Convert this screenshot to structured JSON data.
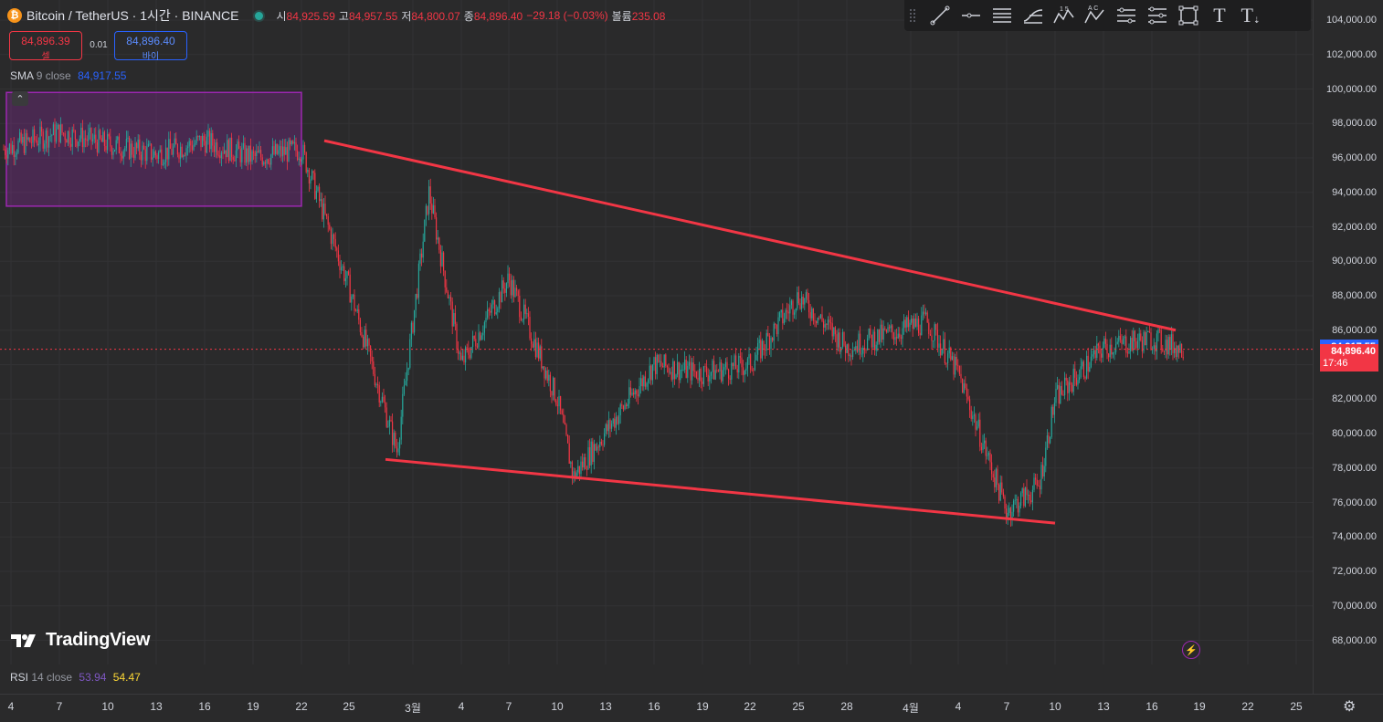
{
  "header": {
    "symbol_icon": "bitcoin-icon",
    "title": "Bitcoin / TetherUS · 1시간 · BINANCE",
    "ohlc": [
      {
        "key": "시",
        "value": "84,925.59"
      },
      {
        "key": "고",
        "value": "84,957.55"
      },
      {
        "key": "저",
        "value": "84,800.07"
      },
      {
        "key": "종",
        "value": "84,896.40"
      },
      {
        "key": "",
        "value": "−29.18 (−0.03%)"
      },
      {
        "key": "볼륨",
        "value": "235.08"
      }
    ]
  },
  "trade": {
    "sell_price": "84,896.39",
    "sell_label": "셀",
    "spread": "0.01",
    "buy_price": "84,896.40",
    "buy_label": "바이"
  },
  "indicators": {
    "sma_name": "SMA",
    "sma_params": "9 close",
    "sma_value": "84,917.55",
    "rsi_name": "RSI",
    "rsi_params": "14 close",
    "rsi_value1": "53.94",
    "rsi_value2": "54.47"
  },
  "toolbar": {
    "items": [
      "trend-line-icon",
      "horizontal-ray-icon",
      "parallel-channel-icon",
      "fib-retracement-icon",
      "xabcd-pattern-icon",
      "abcd-pattern-icon",
      "long-position-icon",
      "date-range-icon",
      "rectangle-icon",
      "text-icon",
      "anchored-text-icon"
    ],
    "labels": [
      "",
      "",
      "",
      "",
      "1 5",
      "A C",
      "",
      "",
      "",
      "T",
      "T"
    ]
  },
  "price_axis": {
    "ticks": [
      "104,000.00",
      "102,000.00",
      "100,000.00",
      "98,000.00",
      "96,000.00",
      "94,000.00",
      "92,000.00",
      "90,000.00",
      "88,000.00",
      "86,000.00",
      "84,000.00",
      "82,000.00",
      "80,000.00",
      "78,000.00",
      "76,000.00",
      "74,000.00",
      "72,000.00",
      "70,000.00",
      "68,000.00"
    ],
    "sma_label": "84,917.55",
    "last_price_label": "84,896.40",
    "countdown": "17:46"
  },
  "time_axis": {
    "ticks": [
      "4",
      "7",
      "10",
      "13",
      "16",
      "19",
      "22",
      "25",
      "3월",
      "4",
      "7",
      "10",
      "13",
      "16",
      "19",
      "22",
      "25",
      "28",
      "4월",
      "4",
      "7",
      "10",
      "13",
      "16",
      "19",
      "22",
      "25"
    ]
  },
  "branding": {
    "logo_text": "TradingView"
  },
  "colors": {
    "up": "#26a69a",
    "down": "#f23645",
    "sma": "#2962ff",
    "trendline": "#f23645",
    "range_box": "#9c27b0",
    "background": "#2a2a2b"
  },
  "chart_data": {
    "type": "candlestick",
    "symbol": "BTCUSDT",
    "timeframe": "1시간",
    "ylim": [
      67000,
      105000
    ],
    "last_price": 84896.4,
    "sma9": 84917.55,
    "x_labels": [
      "4",
      "7",
      "10",
      "13",
      "16",
      "19",
      "22",
      "25",
      "3월",
      "4",
      "7",
      "10",
      "13",
      "16",
      "19",
      "22",
      "25",
      "28",
      "4월",
      "4",
      "7",
      "10",
      "13",
      "16",
      "19",
      "22",
      "25"
    ],
    "approx_path": [
      {
        "x": "2월 4",
        "close": 96500
      },
      {
        "x": "2월 7",
        "close": 97500
      },
      {
        "x": "2월 10",
        "close": 96800
      },
      {
        "x": "2월 13",
        "close": 96200
      },
      {
        "x": "2월 16",
        "close": 97000
      },
      {
        "x": "2월 19",
        "close": 96000
      },
      {
        "x": "2월 22",
        "close": 96500
      },
      {
        "x": "2월 25",
        "close": 88500
      },
      {
        "x": "2월 28",
        "close": 79000
      },
      {
        "x": "3월 2",
        "close": 94000
      },
      {
        "x": "3월 4",
        "close": 84000
      },
      {
        "x": "3월 7",
        "close": 89000
      },
      {
        "x": "3월 10",
        "close": 82000
      },
      {
        "x": "3월 11",
        "close": 77500
      },
      {
        "x": "3월 16",
        "close": 84000
      },
      {
        "x": "3월 19",
        "close": 83500
      },
      {
        "x": "3월 22",
        "close": 84000
      },
      {
        "x": "3월 25",
        "close": 88000
      },
      {
        "x": "3월 28",
        "close": 85000
      },
      {
        "x": "4월 2",
        "close": 86500
      },
      {
        "x": "4월 4",
        "close": 83500
      },
      {
        "x": "4월 7",
        "close": 75500
      },
      {
        "x": "4월 9",
        "close": 77000
      },
      {
        "x": "4월 10",
        "close": 82000
      },
      {
        "x": "4월 13",
        "close": 85000
      },
      {
        "x": "4월 16",
        "close": 85500
      },
      {
        "x": "4월 18",
        "close": 84896
      }
    ],
    "drawings": {
      "upper_trendline": [
        {
          "x": "2월 22",
          "price": 97000
        },
        {
          "x": "4월 16",
          "price": 86000
        }
      ],
      "lower_trendline": [
        {
          "x": "2월 28",
          "price": 78500
        },
        {
          "x": "4월 9",
          "price": 74800
        }
      ],
      "range_box": {
        "from": "2월 4",
        "to": "2월 22",
        "top": 99800,
        "bottom": 93200
      }
    }
  }
}
